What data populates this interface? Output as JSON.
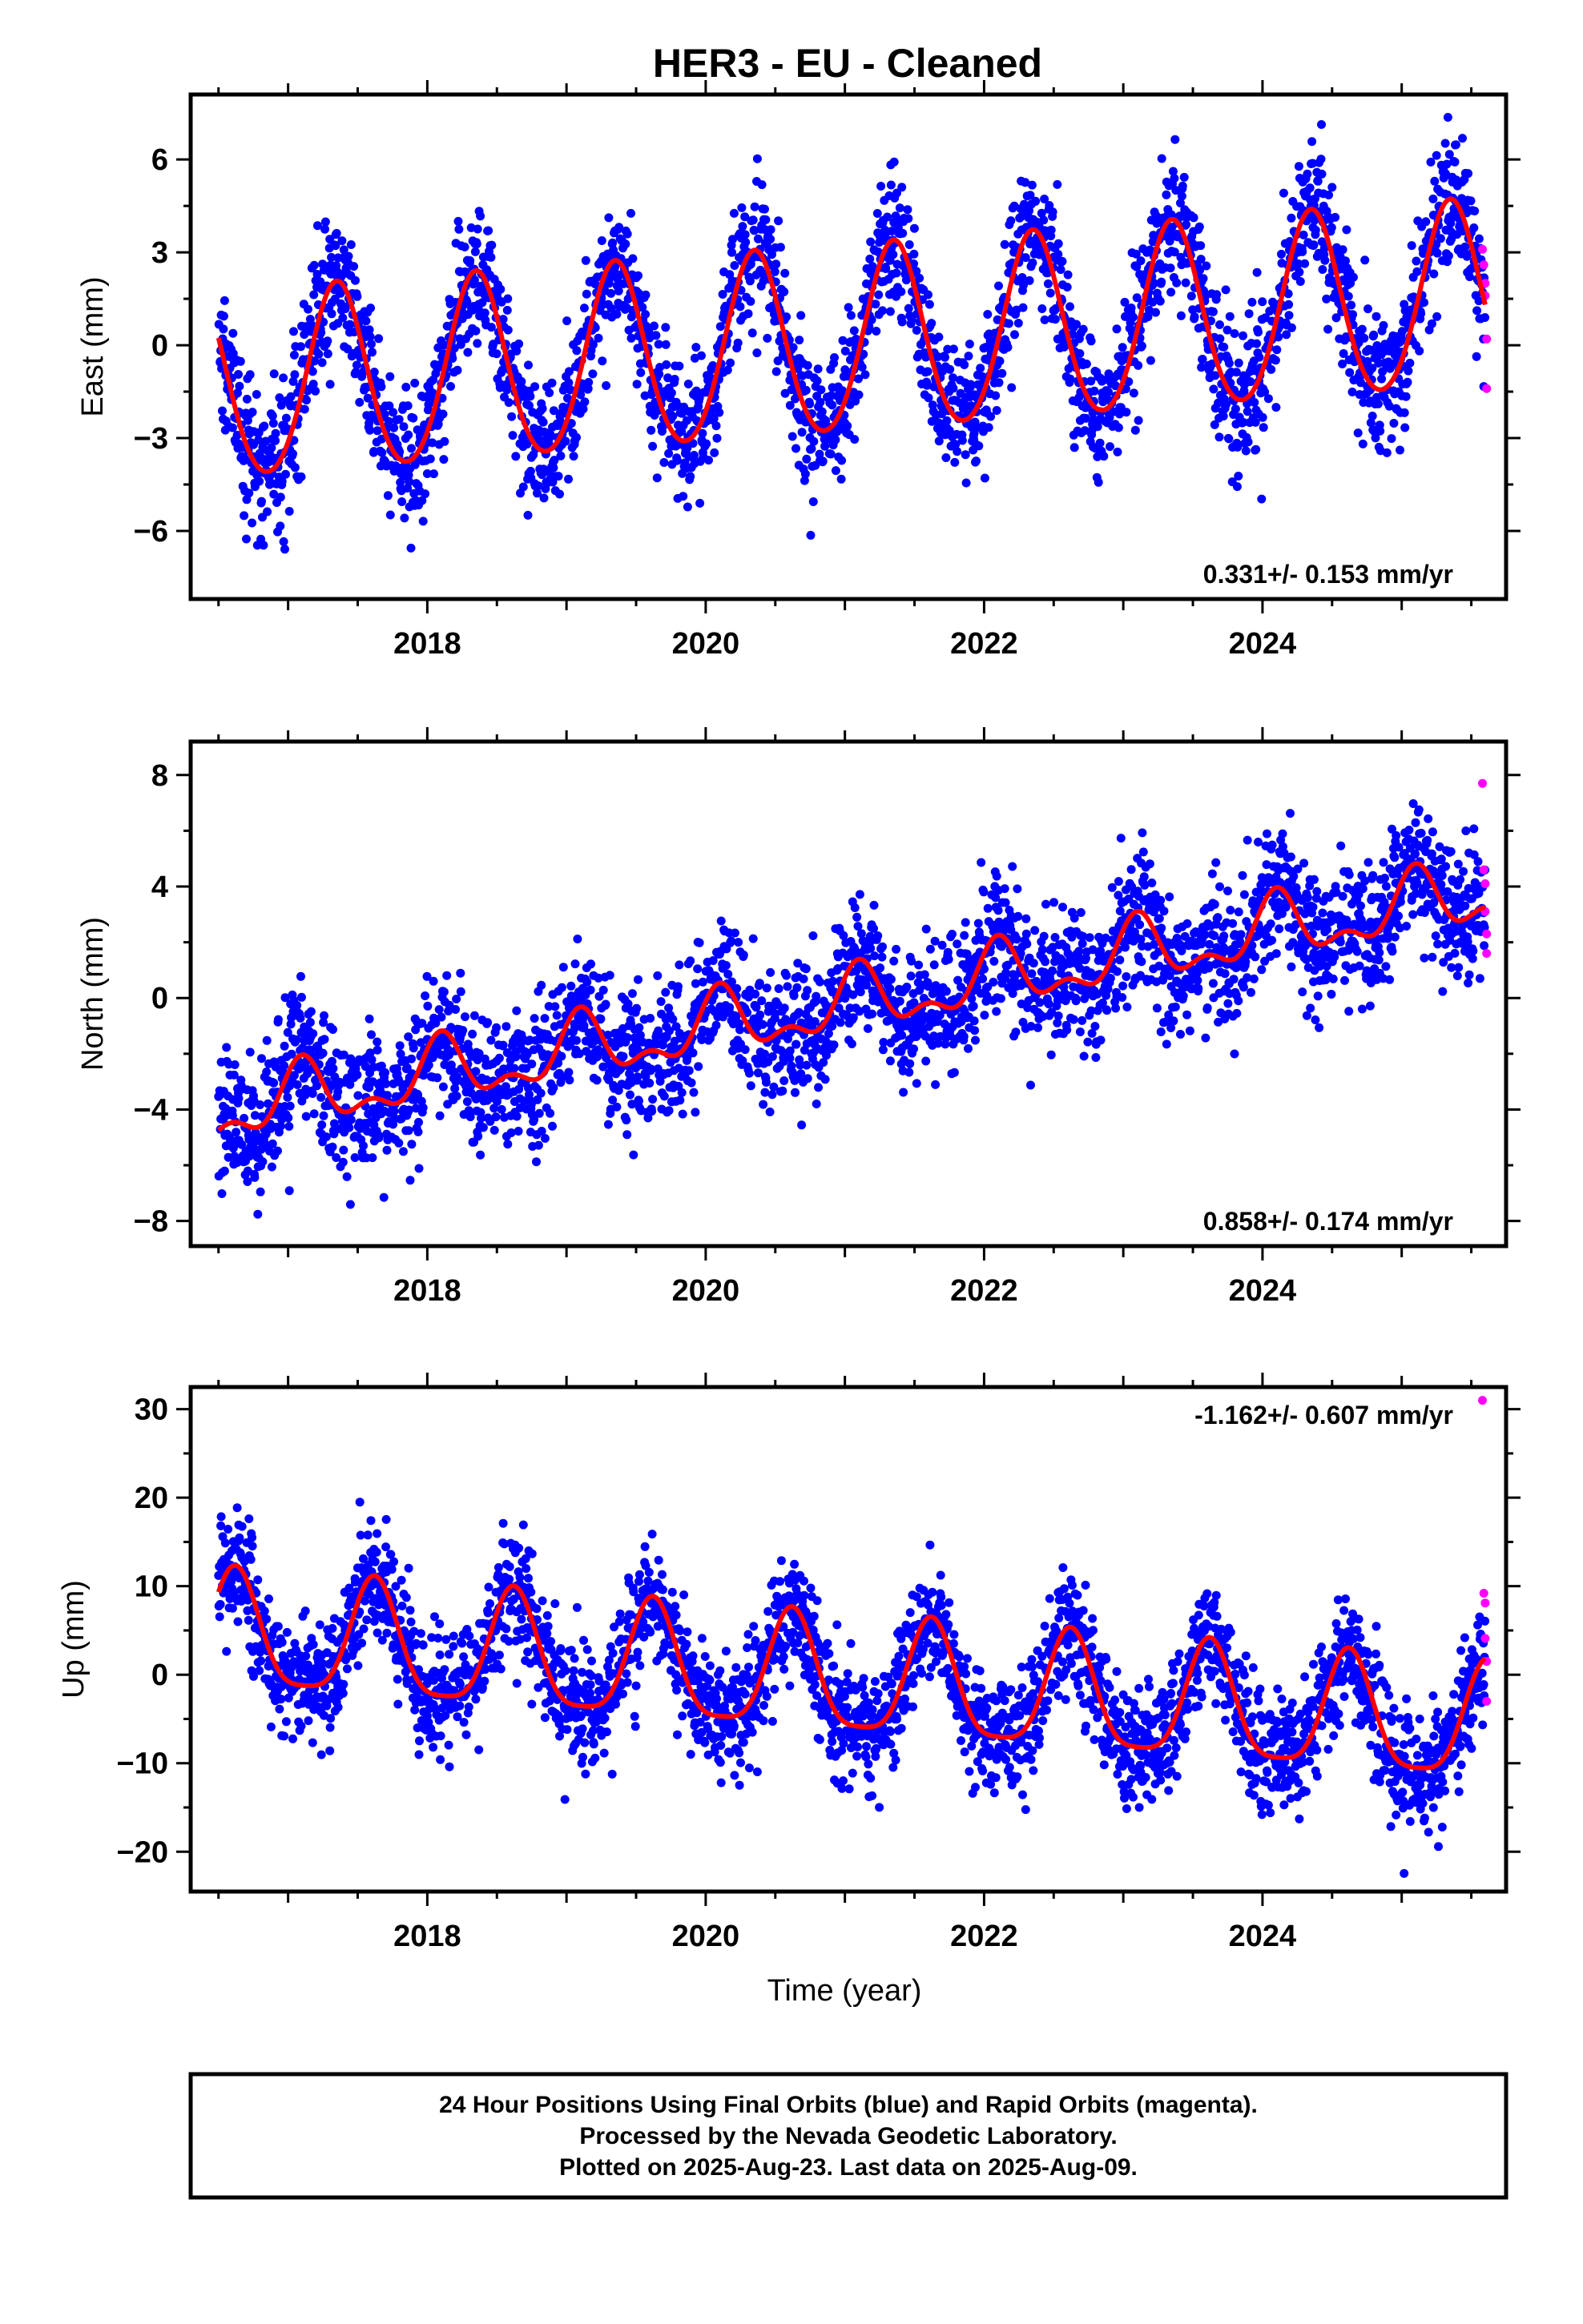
{
  "title": "HER3  - EU - Cleaned",
  "colors": {
    "final": "#0000ff",
    "rapid": "#ff00ff",
    "fit": "#ff0000",
    "frame": "#000000"
  },
  "chart_data": [
    {
      "type": "scatter",
      "component": "East",
      "ylabel": "East (mm)",
      "xlabel": "",
      "xlim": [
        2016.3,
        2025.75
      ],
      "ylim": [
        -8.2,
        8.1
      ],
      "yticks": [
        -6,
        -3,
        0,
        3,
        6
      ],
      "ytick_labels": [
        "−6",
        "−3",
        "0",
        "3",
        "6"
      ],
      "xticks": [
        2018,
        2020,
        2022,
        2024
      ],
      "xtick_labels": [
        "2018",
        "2020",
        "2022",
        "2024"
      ],
      "rate_label": "0.331+/- 0.153 mm/yr",
      "rate_placement": "bottom-right",
      "model": {
        "start": 2016.5,
        "end": 2025.6,
        "offset": -1.45,
        "trend": 0.331,
        "annual_amp": 3.0,
        "annual_phase_peak": 2016.35,
        "semiannual_amp": 0.25,
        "noise_sd": 1.1
      },
      "series": [
        {
          "name": "Final Orbits",
          "kind": "scatter",
          "color": "#0000ff"
        },
        {
          "name": "Rapid Orbits",
          "kind": "scatter",
          "color": "#ff00ff",
          "x": [
            2025.58,
            2025.59,
            2025.6,
            2025.6,
            2025.61,
            2025.61
          ],
          "y": [
            3.1,
            2.6,
            2.0,
            1.6,
            0.2,
            -1.4
          ]
        },
        {
          "name": "Fit",
          "kind": "line",
          "color": "#ff0000"
        }
      ]
    },
    {
      "type": "scatter",
      "component": "North",
      "ylabel": "North (mm)",
      "xlabel": "",
      "xlim": [
        2016.3,
        2025.75
      ],
      "ylim": [
        -8.9,
        9.2
      ],
      "yticks": [
        -8,
        -4,
        0,
        4,
        8
      ],
      "ytick_labels": [
        "−8",
        "−4",
        "0",
        "4",
        "8"
      ],
      "xticks": [
        2018,
        2020,
        2022,
        2024
      ],
      "xtick_labels": [
        "2018",
        "2020",
        "2022",
        "2024"
      ],
      "rate_label": "0.858+/- 0.174 mm/yr",
      "rate_placement": "bottom-right",
      "model": {
        "start": 2016.5,
        "end": 2025.6,
        "offset": -4.1,
        "trend": 0.858,
        "annual_amp": 1.0,
        "annual_phase_peak": 2016.1,
        "semiannual_amp": 0.55,
        "noise_sd": 1.2
      },
      "series": [
        {
          "name": "Final Orbits",
          "kind": "scatter",
          "color": "#0000ff"
        },
        {
          "name": "Rapid Orbits",
          "kind": "scatter",
          "color": "#ff00ff",
          "x": [
            2025.58,
            2025.59,
            2025.6,
            2025.6,
            2025.61,
            2025.61
          ],
          "y": [
            7.7,
            4.6,
            4.1,
            3.1,
            2.3,
            1.6
          ]
        },
        {
          "name": "Fit",
          "kind": "line",
          "color": "#ff0000"
        }
      ]
    },
    {
      "type": "scatter",
      "component": "Up",
      "ylabel": "Up (mm)",
      "xlabel": "Time (year)",
      "xlim": [
        2016.3,
        2025.75
      ],
      "ylim": [
        -24.5,
        32.5
      ],
      "yticks": [
        -20,
        -10,
        0,
        10,
        20,
        30
      ],
      "ytick_labels": [
        "−20",
        "−10",
        "0",
        "10",
        "20",
        "30"
      ],
      "xticks": [
        2018,
        2020,
        2022,
        2024
      ],
      "xtick_labels": [
        "2018",
        "2020",
        "2022",
        "2024"
      ],
      "rate_label": "-1.162+/- 0.607 mm/yr",
      "rate_placement": "top-right",
      "model": {
        "start": 2016.5,
        "end": 2025.6,
        "offset": 4.5,
        "trend": -1.162,
        "annual_amp": 6.5,
        "annual_phase_peak": 2016.62,
        "semiannual_amp": 1.5,
        "noise_sd": 3.3
      },
      "series": [
        {
          "name": "Final Orbits",
          "kind": "scatter",
          "color": "#0000ff"
        },
        {
          "name": "Rapid Orbits",
          "kind": "scatter",
          "color": "#ff00ff",
          "x": [
            2025.58,
            2025.59,
            2025.6,
            2025.6,
            2025.61,
            2025.61
          ],
          "y": [
            31.0,
            9.2,
            8.1,
            4.1,
            1.5,
            -3.0
          ]
        },
        {
          "name": "Fit",
          "kind": "line",
          "color": "#ff0000"
        }
      ]
    }
  ],
  "footer": {
    "line1": "24 Hour Positions Using Final Orbits (blue) and Rapid Orbits (magenta).",
    "line2": "Processed by the Nevada Geodetic Laboratory.",
    "line3": "Plotted on 2025-Aug-23. Last data on 2025-Aug-09."
  }
}
